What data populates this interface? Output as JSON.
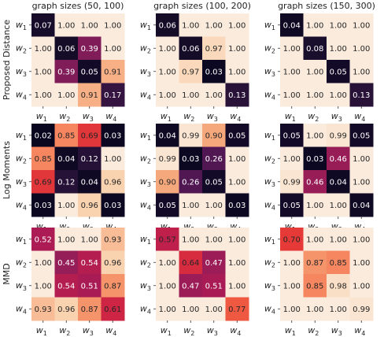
{
  "chart_data": {
    "type": "heatmap",
    "colormap": "rocket",
    "color_range": [
      0,
      1
    ],
    "column_titles": [
      "graph sizes (50, 100)",
      "graph sizes (100, 200)",
      "graph sizes (150, 300)"
    ],
    "row_titles": [
      "Proposed Distance",
      "Log Moments",
      "MMD"
    ],
    "tick_labels": [
      "w1",
      "w2",
      "w3",
      "w4"
    ],
    "panels": [
      [
        [
          [
            0.07,
            1.0,
            1.0,
            1.0
          ],
          [
            1.0,
            0.06,
            0.39,
            1.0
          ],
          [
            1.0,
            0.39,
            0.05,
            0.91
          ],
          [
            1.0,
            1.0,
            0.91,
            0.17
          ]
        ],
        [
          [
            0.06,
            1.0,
            1.0,
            1.0
          ],
          [
            1.0,
            0.06,
            0.97,
            1.0
          ],
          [
            1.0,
            0.97,
            0.03,
            1.0
          ],
          [
            1.0,
            1.0,
            1.0,
            0.13
          ]
        ],
        [
          [
            0.04,
            1.0,
            1.0,
            1.0
          ],
          [
            1.0,
            0.08,
            1.0,
            1.0
          ],
          [
            1.0,
            1.0,
            0.05,
            1.0
          ],
          [
            1.0,
            1.0,
            1.0,
            0.13
          ]
        ]
      ],
      [
        [
          [
            0.02,
            0.85,
            0.69,
            0.03
          ],
          [
            0.85,
            0.04,
            0.12,
            1.0
          ],
          [
            0.69,
            0.12,
            0.04,
            0.96
          ],
          [
            0.03,
            1.0,
            0.96,
            0.03
          ]
        ],
        [
          [
            0.04,
            0.99,
            0.9,
            0.05
          ],
          [
            0.99,
            0.03,
            0.26,
            1.0
          ],
          [
            0.9,
            0.26,
            0.05,
            1.0
          ],
          [
            0.05,
            1.0,
            1.0,
            0.03
          ]
        ],
        [
          [
            0.05,
            1.0,
            0.99,
            0.05
          ],
          [
            1.0,
            0.03,
            0.46,
            1.0
          ],
          [
            0.99,
            0.46,
            0.04,
            1.0
          ],
          [
            0.05,
            1.0,
            1.0,
            0.04
          ]
        ]
      ],
      [
        [
          [
            0.52,
            1.0,
            1.0,
            0.93
          ],
          [
            1.0,
            0.45,
            0.54,
            0.96
          ],
          [
            1.0,
            0.54,
            0.51,
            0.87
          ],
          [
            0.93,
            0.96,
            0.87,
            0.61
          ]
        ],
        [
          [
            0.57,
            1.0,
            1.0,
            1.0
          ],
          [
            1.0,
            0.64,
            0.47,
            1.0
          ],
          [
            1.0,
            0.47,
            0.51,
            1.0
          ],
          [
            1.0,
            1.0,
            1.0,
            0.77
          ]
        ],
        [
          [
            0.7,
            1.0,
            1.0,
            1.0
          ],
          [
            1.0,
            0.87,
            0.85,
            1.0
          ],
          [
            1.0,
            0.85,
            0.98,
            1.0
          ],
          [
            1.0,
            1.0,
            1.0,
            0.99
          ]
        ]
      ]
    ]
  }
}
